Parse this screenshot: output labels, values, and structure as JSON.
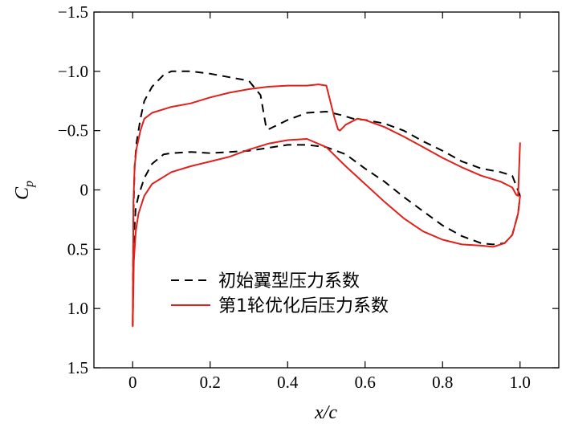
{
  "chart_data": {
    "type": "line",
    "title": "",
    "xlabel": "x/c",
    "ylabel": "Cp",
    "ylabel_main": "C",
    "ylabel_sub": "p",
    "xlim": [
      -0.1,
      1.1
    ],
    "ylim": [
      -1.5,
      1.5
    ],
    "y_inverted": true,
    "grid": false,
    "legend_position": "bottom-center",
    "x_ticks": [
      "0",
      "0.2",
      "0.4",
      "0.6",
      "0.8",
      "1.0"
    ],
    "x_tick_values": [
      0,
      0.2,
      0.4,
      0.6,
      0.8,
      1.0
    ],
    "y_ticks": [
      "−1.5",
      "−1.0",
      "−0.5",
      "0",
      "0.5",
      "1.0",
      "1.5"
    ],
    "y_tick_values": [
      -1.5,
      -1.0,
      -0.5,
      0,
      0.5,
      1.0,
      1.5
    ],
    "series": [
      {
        "name": "初始翼型压力系数",
        "color": "#000000",
        "dash": "dashed",
        "x": [
          1.0,
          0.98,
          0.95,
          0.9,
          0.85,
          0.8,
          0.75,
          0.7,
          0.65,
          0.6,
          0.57,
          0.54,
          0.5,
          0.45,
          0.4,
          0.35,
          0.345,
          0.33,
          0.3,
          0.25,
          0.2,
          0.15,
          0.1,
          0.08,
          0.05,
          0.03,
          0.02,
          0.01,
          0.005,
          0.002,
          0.0,
          0.003,
          0.008,
          0.015,
          0.03,
          0.05,
          0.08,
          0.1,
          0.15,
          0.2,
          0.3,
          0.4,
          0.45,
          0.5,
          0.55,
          0.6,
          0.65,
          0.7,
          0.75,
          0.8,
          0.85,
          0.9,
          0.93,
          0.96,
          0.98,
          0.995,
          1.0
        ],
        "y": [
          0.05,
          -0.12,
          -0.15,
          -0.18,
          -0.24,
          -0.33,
          -0.41,
          -0.5,
          -0.56,
          -0.59,
          -0.6,
          -0.63,
          -0.66,
          -0.65,
          -0.59,
          -0.51,
          -0.52,
          -0.8,
          -0.92,
          -0.95,
          -0.98,
          -1.0,
          -1.0,
          -0.97,
          -0.87,
          -0.75,
          -0.6,
          -0.4,
          -0.2,
          0.2,
          1.15,
          0.4,
          0.15,
          0.05,
          -0.1,
          -0.22,
          -0.3,
          -0.31,
          -0.32,
          -0.31,
          -0.33,
          -0.38,
          -0.38,
          -0.36,
          -0.3,
          -0.18,
          -0.07,
          0.06,
          0.18,
          0.3,
          0.39,
          0.45,
          0.46,
          0.45,
          0.38,
          0.2,
          0.05
        ]
      },
      {
        "name": "第1轮优化后压力系数",
        "color": "#e0201b",
        "dash": "solid",
        "x": [
          1.0,
          0.995,
          0.99,
          0.98,
          0.95,
          0.9,
          0.85,
          0.8,
          0.75,
          0.7,
          0.65,
          0.6,
          0.58,
          0.55,
          0.535,
          0.53,
          0.52,
          0.5,
          0.48,
          0.45,
          0.4,
          0.35,
          0.3,
          0.25,
          0.2,
          0.15,
          0.1,
          0.05,
          0.03,
          0.02,
          0.01,
          0.005,
          0.002,
          0.0,
          0.003,
          0.008,
          0.015,
          0.03,
          0.05,
          0.1,
          0.15,
          0.2,
          0.25,
          0.3,
          0.35,
          0.4,
          0.45,
          0.5,
          0.55,
          0.6,
          0.65,
          0.7,
          0.75,
          0.8,
          0.85,
          0.9,
          0.93,
          0.96,
          0.98,
          0.995,
          1.0
        ],
        "y": [
          -0.4,
          0.05,
          0.04,
          -0.02,
          -0.07,
          -0.12,
          -0.19,
          -0.27,
          -0.36,
          -0.45,
          -0.53,
          -0.59,
          -0.6,
          -0.55,
          -0.5,
          -0.51,
          -0.62,
          -0.88,
          -0.89,
          -0.88,
          -0.88,
          -0.87,
          -0.85,
          -0.82,
          -0.78,
          -0.73,
          -0.7,
          -0.65,
          -0.6,
          -0.5,
          -0.35,
          -0.2,
          0.1,
          1.15,
          0.6,
          0.35,
          0.2,
          0.05,
          -0.05,
          -0.15,
          -0.2,
          -0.24,
          -0.28,
          -0.34,
          -0.39,
          -0.42,
          -0.43,
          -0.36,
          -0.2,
          -0.05,
          0.1,
          0.24,
          0.35,
          0.42,
          0.46,
          0.47,
          0.48,
          0.45,
          0.38,
          0.2,
          0.05
        ]
      }
    ]
  }
}
